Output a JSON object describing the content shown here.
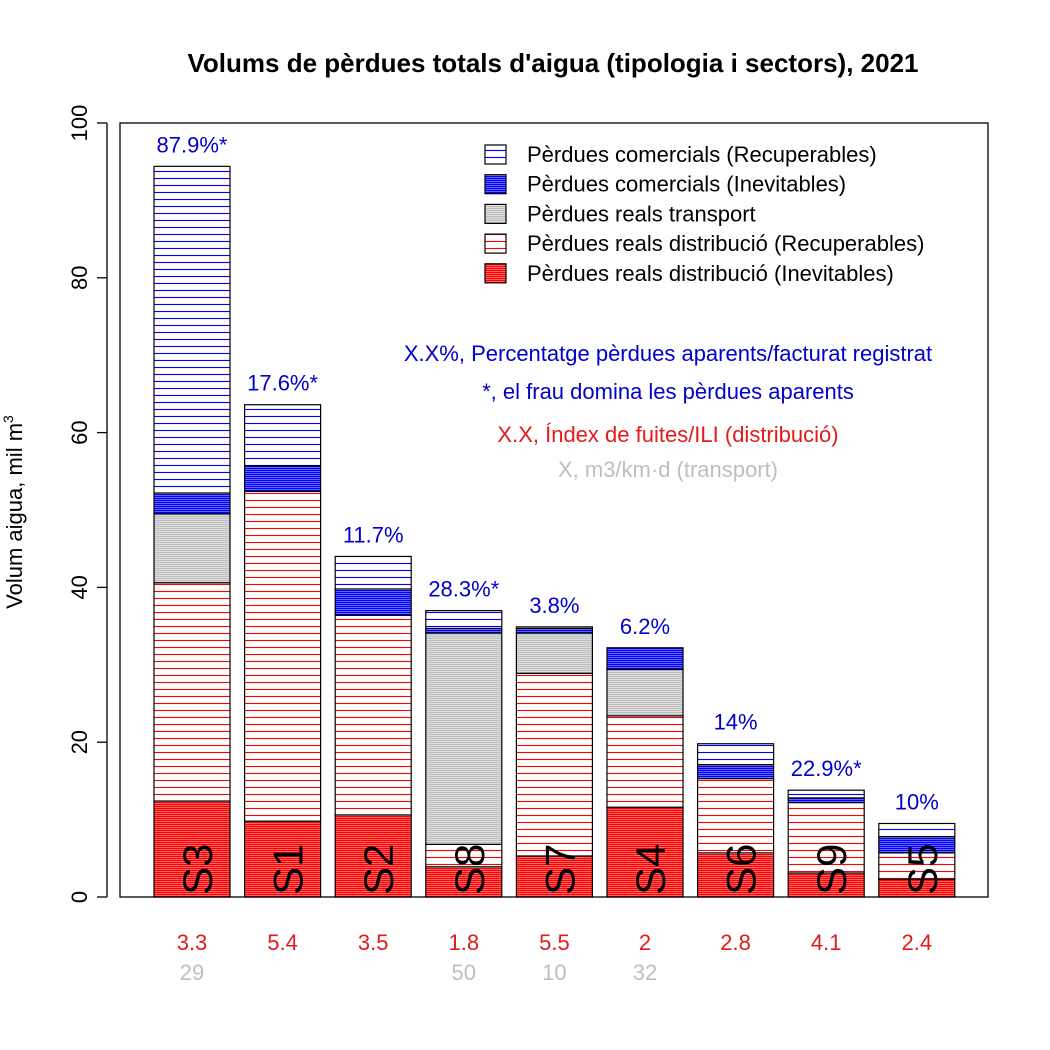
{
  "chart_data": {
    "type": "bar",
    "stacked": true,
    "title": "Volums de pèrdues totals d'aigua (tipologia i sectors), 2021",
    "ylabel": "Volum aigua, mil m",
    "ylabel_superscript": "3",
    "ylim": [
      0,
      100
    ],
    "yticks": [
      "0",
      "20",
      "40",
      "60",
      "80",
      "100"
    ],
    "categories": [
      "S3",
      "S1",
      "S2",
      "S8",
      "S7",
      "S4",
      "S6",
      "S9",
      "S5"
    ],
    "series": [
      {
        "name": "Pèrdues reals distribució (Inevitables)",
        "color": "#ff0000",
        "fill": "dense",
        "values": [
          12.4,
          9.8,
          10.6,
          3.9,
          5.3,
          11.6,
          5.7,
          3.1,
          2.3
        ]
      },
      {
        "name": "Pèrdues reals distribució (Recuperables)",
        "color": "#ff0000",
        "fill": "lines",
        "values": [
          28.2,
          42.6,
          25.8,
          2.9,
          23.6,
          11.8,
          9.6,
          9.1,
          3.4
        ]
      },
      {
        "name": "Pèrdues reals transport",
        "color": "#bebebe",
        "fill": "dense",
        "values": [
          8.9,
          0,
          0,
          27.3,
          5.2,
          6.0,
          0,
          0,
          0
        ]
      },
      {
        "name": "Pèrdues comercials (Inevitables)",
        "color": "#0000ff",
        "fill": "dense",
        "values": [
          2.7,
          3.3,
          3.4,
          0.6,
          0.6,
          2.8,
          1.8,
          0.6,
          2.1
        ]
      },
      {
        "name": "Pèrdues comercials (Recuperables)",
        "color": "#0000ff",
        "fill": "lines",
        "values": [
          42.2,
          7.9,
          4.2,
          2.3,
          0.2,
          0,
          2.7,
          1.0,
          1.7
        ]
      }
    ],
    "bar_top_labels": [
      "87.9%*",
      "17.6%*",
      "11.7%",
      "28.3%*",
      "3.8%",
      "6.2%",
      "14%",
      "22.9%*",
      "10%"
    ],
    "ili_labels": [
      "3.3",
      "5.4",
      "3.5",
      "1.8",
      "5.5",
      "2",
      "2.8",
      "4.1",
      "2.4"
    ],
    "transport_labels": [
      "29",
      "",
      "",
      "50",
      "10",
      "32",
      "",
      "",
      ""
    ],
    "annotations": [
      {
        "text": "X.X%, Percentatge pèrdues aparents/facturat registrat",
        "color": "#0000cd"
      },
      {
        "text": "*, el frau domina les pèrdues aparents",
        "color": "#0000cd"
      },
      {
        "text": "X.X, Índex de fuites/ILI (distribució)",
        "color": "#e31a1c"
      },
      {
        "text": "X, m3/km·d (transport)",
        "color": "#bebebe"
      }
    ],
    "legend_position": "top-right",
    "legend_order": [
      4,
      3,
      2,
      1,
      0
    ],
    "colors": {
      "pct_label": "#0000cd",
      "ili_label": "#e31a1c",
      "transport_label": "#bebebe"
    }
  }
}
